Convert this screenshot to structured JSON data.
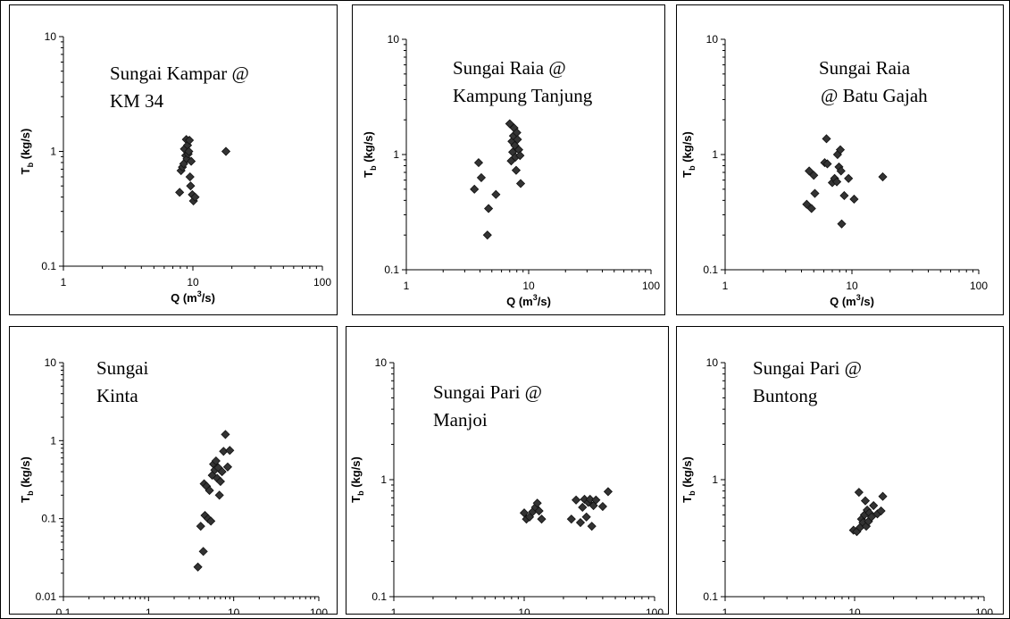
{
  "figure": {
    "panels": [
      {
        "id": "kampar",
        "label_lines": [
          "Sungai Kampar @",
          "KM 34"
        ]
      },
      {
        "id": "raia-tanjung",
        "label_lines": [
          "Sungai Raia @",
          "Kampung Tanjung"
        ]
      },
      {
        "id": "raia-gajah",
        "label_lines": [
          "Sungai Raia",
          "@ Batu Gajah"
        ]
      },
      {
        "id": "kinta",
        "label_lines": [
          "Sungai",
          "Kinta"
        ]
      },
      {
        "id": "pari-manjoi",
        "label_lines": [
          "Sungai Pari @",
          "Manjoi"
        ]
      },
      {
        "id": "pari-buntong",
        "label_lines": [
          "Sungai Pari @",
          "Buntong"
        ]
      }
    ]
  },
  "chart_data": [
    {
      "type": "scatter",
      "title": "Sungai Kampar @ KM 34",
      "xlabel": "Q (m3/s)",
      "ylabel": "Tb (kg/s)",
      "xscale": "log",
      "yscale": "log",
      "xlim": [
        1,
        100
      ],
      "ylim": [
        0.1,
        10
      ],
      "xticks": [
        "1",
        "10",
        "100"
      ],
      "yticks": [
        "0.1",
        "1",
        "10"
      ],
      "marker": "diamond",
      "marker_color": "#333333",
      "grid": false,
      "x": [
        7.9,
        8.1,
        8.3,
        8.5,
        8.6,
        8.8,
        8.9,
        9.0,
        9.1,
        9.2,
        9.3,
        9.4,
        9.5,
        9.6,
        9.7,
        9.9,
        10.1,
        10.4,
        18.0
      ],
      "y": [
        0.44,
        0.68,
        0.73,
        0.78,
        1.05,
        0.92,
        1.27,
        0.86,
        1.13,
        0.95,
        1.0,
        1.25,
        0.6,
        0.5,
        0.82,
        0.42,
        0.37,
        0.4,
        1.0
      ]
    },
    {
      "type": "scatter",
      "title": "Sungai Raia @ Kampung Tanjung",
      "xlabel": "Q (m3/s)",
      "ylabel": "Tb (kg/s)",
      "xscale": "log",
      "yscale": "log",
      "xlim": [
        1,
        100
      ],
      "ylim": [
        0.1,
        10
      ],
      "xticks": [
        "1",
        "10",
        "100"
      ],
      "yticks": [
        "0.1",
        "1",
        "10"
      ],
      "marker": "diamond",
      "marker_color": "#333333",
      "grid": false,
      "x": [
        3.6,
        3.9,
        4.1,
        4.6,
        4.7,
        5.4,
        7.0,
        7.2,
        7.3,
        7.4,
        7.5,
        7.6,
        7.7,
        7.8,
        7.9,
        8.0,
        8.1,
        8.3,
        8.5,
        8.6
      ],
      "y": [
        0.5,
        0.85,
        0.63,
        0.2,
        0.34,
        0.45,
        1.85,
        0.88,
        1.3,
        1.05,
        1.45,
        1.7,
        1.2,
        0.95,
        0.73,
        1.55,
        1.35,
        1.1,
        0.98,
        0.56
      ]
    },
    {
      "type": "scatter",
      "title": "Sungai Raia @ Batu Gajah",
      "xlabel": "Q (m3/s)",
      "ylabel": "Tb (kg/s)",
      "xscale": "log",
      "yscale": "log",
      "xlim": [
        1,
        100
      ],
      "ylim": [
        0.1,
        10
      ],
      "xticks": [
        "1",
        "10",
        "100"
      ],
      "yticks": [
        "0.1",
        "1",
        "10"
      ],
      "marker": "diamond",
      "marker_color": "#333333",
      "grid": false,
      "x": [
        4.4,
        4.6,
        4.8,
        5.0,
        5.1,
        6.1,
        6.3,
        6.4,
        7.0,
        7.3,
        7.6,
        7.7,
        7.9,
        8.1,
        8.2,
        8.3,
        8.7,
        9.4,
        10.4,
        17.5
      ],
      "y": [
        0.37,
        0.72,
        0.34,
        0.66,
        0.46,
        0.85,
        1.37,
        0.83,
        0.57,
        0.62,
        0.58,
        1.0,
        0.78,
        1.1,
        0.72,
        0.25,
        0.44,
        0.62,
        0.41,
        0.64
      ]
    },
    {
      "type": "scatter",
      "title": "Sungai Kinta",
      "xlabel": "Q (m3/s)",
      "ylabel": "Tb (kg/s)",
      "xscale": "log",
      "yscale": "log",
      "xlim": [
        0.1,
        100
      ],
      "ylim": [
        0.01,
        10
      ],
      "xticks": [
        "0.1",
        "1",
        "10",
        "100"
      ],
      "yticks": [
        "0.01",
        "0.1",
        "1",
        "10"
      ],
      "marker": "diamond",
      "marker_color": "#333333",
      "grid": false,
      "x": [
        3.8,
        4.1,
        4.4,
        4.5,
        4.6,
        4.8,
        5.0,
        5.2,
        5.4,
        5.6,
        5.8,
        6.0,
        6.2,
        6.4,
        6.6,
        6.8,
        7.0,
        7.3,
        7.6,
        8.0,
        8.5,
        9.0
      ],
      "y": [
        0.024,
        0.08,
        0.038,
        0.28,
        0.11,
        0.26,
        0.1,
        0.23,
        0.093,
        0.36,
        0.5,
        0.42,
        0.55,
        0.33,
        0.45,
        0.2,
        0.3,
        0.4,
        0.73,
        1.2,
        0.46,
        0.75
      ]
    },
    {
      "type": "scatter",
      "title": "Sungai Pari @ Manjoi",
      "xlabel": "Q (m3/s)",
      "ylabel": "Tb (kg/s)",
      "xscale": "log",
      "yscale": "log",
      "xlim": [
        1,
        100
      ],
      "ylim": [
        0.1,
        10
      ],
      "xticks": [
        "1",
        "10",
        "100"
      ],
      "yticks": [
        "0.1",
        "1",
        "10"
      ],
      "marker": "diamond",
      "marker_color": "#333333",
      "grid": false,
      "x": [
        10.0,
        10.4,
        11.0,
        11.6,
        12.2,
        12.6,
        13.0,
        13.6,
        23.0,
        25.0,
        27.0,
        28.0,
        29.0,
        30.0,
        31.0,
        32.0,
        33.0,
        34.0,
        35.5,
        40.0,
        44.0
      ],
      "y": [
        0.52,
        0.46,
        0.48,
        0.53,
        0.58,
        0.63,
        0.54,
        0.46,
        0.46,
        0.67,
        0.43,
        0.58,
        0.68,
        0.48,
        0.64,
        0.68,
        0.4,
        0.6,
        0.67,
        0.59,
        0.79
      ]
    },
    {
      "type": "scatter",
      "title": "Sungai Pari @ Buntong",
      "xlabel": "Q (m3/s)",
      "ylabel": "Tb (kg/s)",
      "xscale": "log",
      "yscale": "log",
      "xlim": [
        1,
        100
      ],
      "ylim": [
        0.1,
        10
      ],
      "xticks": [
        "1",
        "10",
        "100"
      ],
      "yticks": [
        "0.1",
        "1",
        "10"
      ],
      "marker": "diamond",
      "marker_color": "#333333",
      "grid": false,
      "x": [
        9.8,
        10.4,
        10.8,
        11.0,
        11.3,
        11.6,
        11.9,
        12.1,
        12.3,
        12.5,
        12.8,
        13.0,
        13.5,
        14.0,
        15.0,
        16.0,
        16.5
      ],
      "y": [
        0.37,
        0.36,
        0.78,
        0.39,
        0.46,
        0.43,
        0.5,
        0.66,
        0.4,
        0.55,
        0.44,
        0.52,
        0.48,
        0.6,
        0.51,
        0.54,
        0.72
      ]
    }
  ]
}
